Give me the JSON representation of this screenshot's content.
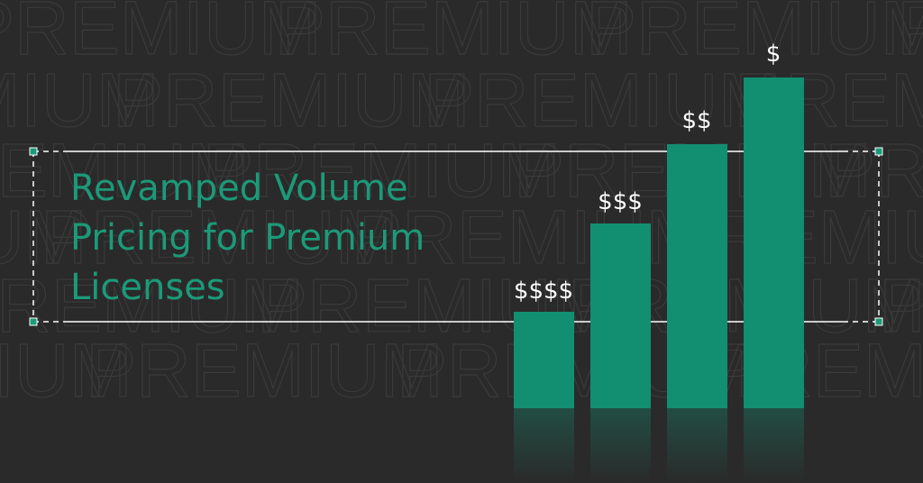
{
  "background_word": "PREMIUM",
  "title_lines": [
    "Revamped Volume",
    "Pricing for Premium",
    "Licenses"
  ],
  "bar_labels": [
    "$$$$",
    "$$$",
    "$$",
    "$"
  ]
}
